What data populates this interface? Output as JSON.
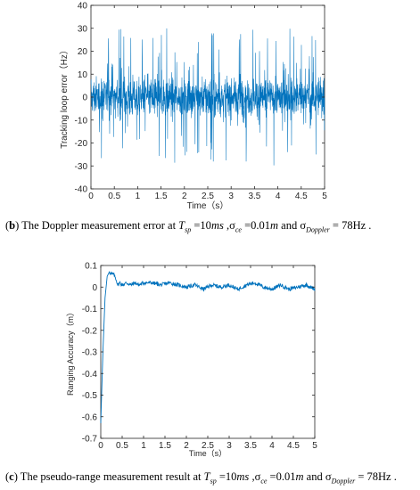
{
  "chart_data": [
    {
      "type": "line",
      "ylabel": "Tracking loop error（Hz）",
      "xlabel": "Time（s）",
      "xlim": [
        0,
        5
      ],
      "ylim": [
        -40,
        40
      ],
      "xticks": [
        "0",
        "0.5",
        "1",
        "1.5",
        "2",
        "2.5",
        "3",
        "3.5",
        "4",
        "4.5",
        "5"
      ],
      "yticks": [
        "40",
        "30",
        "20",
        "10",
        "0",
        "-10",
        "-20",
        "-30",
        "-40"
      ],
      "series": [
        {
          "style": "noise",
          "mean": 0,
          "core_amplitude": 8,
          "peak_amplitude_max": 30,
          "min": -35,
          "max": 34,
          "color": "#0072BD"
        }
      ],
      "grid": false
    },
    {
      "type": "line",
      "ylabel": "Ranging Accuracy（m）",
      "xlabel": "Time（s）",
      "xlim": [
        0,
        5
      ],
      "ylim": [
        -0.7,
        0.1
      ],
      "xticks": [
        "0",
        "0.5",
        "1",
        "1.5",
        "2",
        "2.5",
        "3",
        "3.5",
        "4",
        "4.5",
        "5"
      ],
      "yticks": [
        "0.1",
        "0",
        "-0.1",
        "-0.2",
        "-0.3",
        "-0.4",
        "-0.5",
        "-0.6",
        "-0.7"
      ],
      "series": [
        {
          "color": "#0072BD",
          "x": [
            0,
            0.05,
            0.1,
            0.15,
            0.2,
            0.25,
            0.3,
            0.35,
            0.4,
            0.45,
            0.5,
            0.6,
            0.7,
            0.8,
            0.9,
            1.0,
            1.2,
            1.4,
            1.6,
            1.8,
            2.0,
            2.2,
            2.4,
            2.6,
            2.8,
            3.0,
            3.2,
            3.4,
            3.6,
            3.8,
            4.0,
            4.2,
            4.4,
            4.6,
            4.8,
            5.0
          ],
          "y": [
            -0.63,
            -0.3,
            -0.05,
            0.05,
            0.07,
            0.06,
            0.06,
            0.04,
            0.01,
            0.02,
            0.01,
            0.02,
            0.01,
            0.02,
            0.01,
            0.02,
            0.02,
            0.01,
            0.02,
            0.01,
            0.0,
            0.01,
            -0.01,
            0.01,
            0.0,
            0.01,
            -0.01,
            0.01,
            0.02,
            0.0,
            -0.01,
            0.01,
            -0.01,
            0.0,
            0.01,
            -0.01
          ]
        }
      ],
      "grid": false
    }
  ],
  "captions": {
    "b": {
      "label": "b",
      "text_before": " The Doppler measurement error at ",
      "tsp": "T",
      "tsp_sub": "sp",
      "eq1": " =10",
      "ms": "ms",
      "sigma": " ,σ",
      "ce_sub": "ce",
      "eq2": " =0.01",
      "m": "m",
      "and": "  and  σ",
      "dop_sub": "Doppler",
      "eq3": " = 78Hz ."
    },
    "c": {
      "label": "c",
      "text_before": " The pseudo-range measurement result at ",
      "tsp": "T",
      "tsp_sub": "sp",
      "eq1": " =10",
      "ms": "ms",
      "sigma": " ,σ",
      "ce_sub": "ce",
      "eq2": " =0.01",
      "m": "m",
      "and": "  and  σ",
      "dop_sub": "Doppler",
      "eq3": " = 78Hz ."
    }
  }
}
